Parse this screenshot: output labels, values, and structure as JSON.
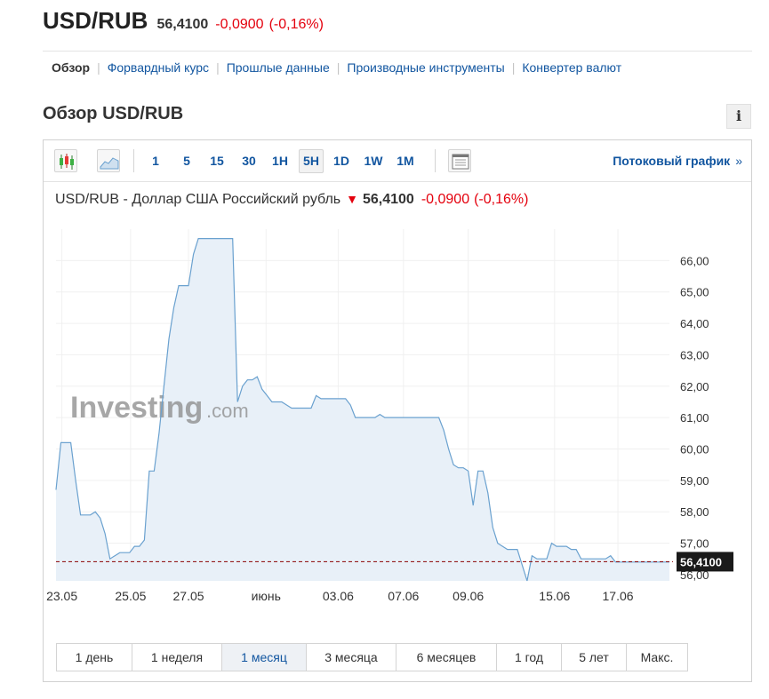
{
  "header": {
    "symbol": "USD/RUB",
    "last": "56,4100",
    "change": "-0,0900",
    "change_pct": "(-0,16%)",
    "negative_color": "#e4000d"
  },
  "subnav": {
    "items": [
      "Обзор",
      "Форвардный курс",
      "Прошлые данные",
      "Производные инструменты",
      "Конвертер валют"
    ],
    "active": "Обзор"
  },
  "section": {
    "title": "Обзор USD/RUB",
    "info_label": "i"
  },
  "toolbar": {
    "chart_type_icons": [
      "candlestick-icon",
      "area-chart-icon"
    ],
    "timeframes": [
      "1",
      "5",
      "15",
      "30",
      "1H",
      "5H",
      "1D",
      "1W",
      "1M"
    ],
    "active_timeframe": "5H",
    "layout_icon": "chart-layout-icon",
    "stream_link": "Потоковый график",
    "stream_chevron": "»"
  },
  "chart_title": {
    "name": "USD/RUB - Доллар США Российский рубль",
    "arrow": "🡇",
    "price": "56,4100",
    "change": "-0,0900",
    "change_pct": "(-0,16%)"
  },
  "watermark": {
    "brand": "Investing",
    "suffix": ".com"
  },
  "chart_data": {
    "type": "area",
    "y_ticks": [
      56,
      57,
      58,
      59,
      60,
      61,
      62,
      63,
      64,
      65,
      66
    ],
    "y_tick_labels": [
      "56,00",
      "57,00",
      "58,00",
      "59,00",
      "60,00",
      "61,00",
      "62,00",
      "63,00",
      "64,00",
      "65,00",
      "66,00"
    ],
    "ylim": [
      55.8,
      67.0
    ],
    "x_tick_labels": [
      "23.05",
      "25.05",
      "27.05",
      "июнь",
      "03.06",
      "07.06",
      "09.06",
      "15.06",
      "17.06"
    ],
    "x_tick_index": [
      1.2,
      15.2,
      27.0,
      42.8,
      57.5,
      70.8,
      84.0,
      101.6,
      114.5
    ],
    "x_count": 126,
    "last_value": 56.41,
    "last_label": "56,4100",
    "series": [
      {
        "values": [
          58.7,
          60.2,
          60.2,
          60.2,
          59.0,
          57.9,
          57.9,
          57.9,
          58.0,
          57.8,
          57.3,
          56.5,
          56.6,
          56.7,
          56.7,
          56.7,
          56.9,
          56.9,
          57.1,
          59.3,
          59.3,
          60.5,
          62.0,
          63.5,
          64.5,
          65.2,
          65.2,
          65.2,
          66.2,
          66.7,
          66.7,
          66.7,
          66.7,
          66.7,
          66.7,
          66.7,
          66.7,
          61.5,
          62.0,
          62.2,
          62.2,
          62.3,
          61.9,
          61.7,
          61.5,
          61.5,
          61.5,
          61.4,
          61.3,
          61.3,
          61.3,
          61.3,
          61.3,
          61.7,
          61.6,
          61.6,
          61.6,
          61.6,
          61.6,
          61.6,
          61.4,
          61.0,
          61.0,
          61.0,
          61.0,
          61.0,
          61.1,
          61.0,
          61.0,
          61.0,
          61.0,
          61.0,
          61.0,
          61.0,
          61.0,
          61.0,
          61.0,
          61.0,
          61.0,
          60.6,
          60.0,
          59.5,
          59.4,
          59.4,
          59.3,
          58.2,
          59.3,
          59.3,
          58.6,
          57.5,
          57.0,
          56.9,
          56.8,
          56.8,
          56.8,
          56.3,
          55.8,
          56.6,
          56.5,
          56.5,
          56.5,
          57.0,
          56.9,
          56.9,
          56.9,
          56.8,
          56.8,
          56.5,
          56.5,
          56.5,
          56.5,
          56.5,
          56.5,
          56.6,
          56.4,
          56.4,
          56.4,
          56.4,
          56.4,
          56.4,
          56.4,
          56.4,
          56.4,
          56.4,
          56.4,
          56.4
        ]
      }
    ],
    "line_color": "#6aa1cf",
    "fill_color": "#e8f0f8",
    "last_line_color": "#8b0000",
    "grid": true
  },
  "periods": {
    "items": [
      "1 день",
      "1 неделя",
      "1 месяц",
      "3 месяца",
      "6 месяцев",
      "1 год",
      "5 лет",
      "Макс."
    ],
    "active": "1 месяц"
  }
}
